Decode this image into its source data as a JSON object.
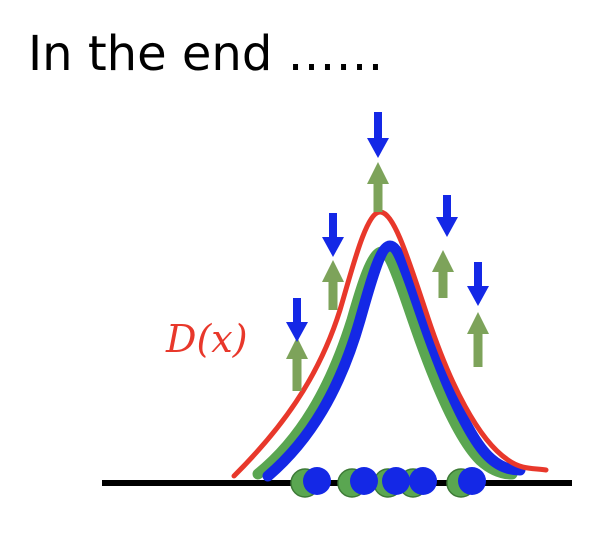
{
  "title": "In the end ……",
  "discriminator_label": "D(x)",
  "colors": {
    "discriminator": "#e8382b",
    "generated": "#1428e6",
    "real": "#5aa651",
    "up_arrow": "#7da35a",
    "down_arrow": "#1428e6",
    "axis": "#000000",
    "real_point": "#5aa651",
    "generated_point": "#1428e6"
  },
  "icons": [
    "up-arrow-icon",
    "down-arrow-icon"
  ]
}
